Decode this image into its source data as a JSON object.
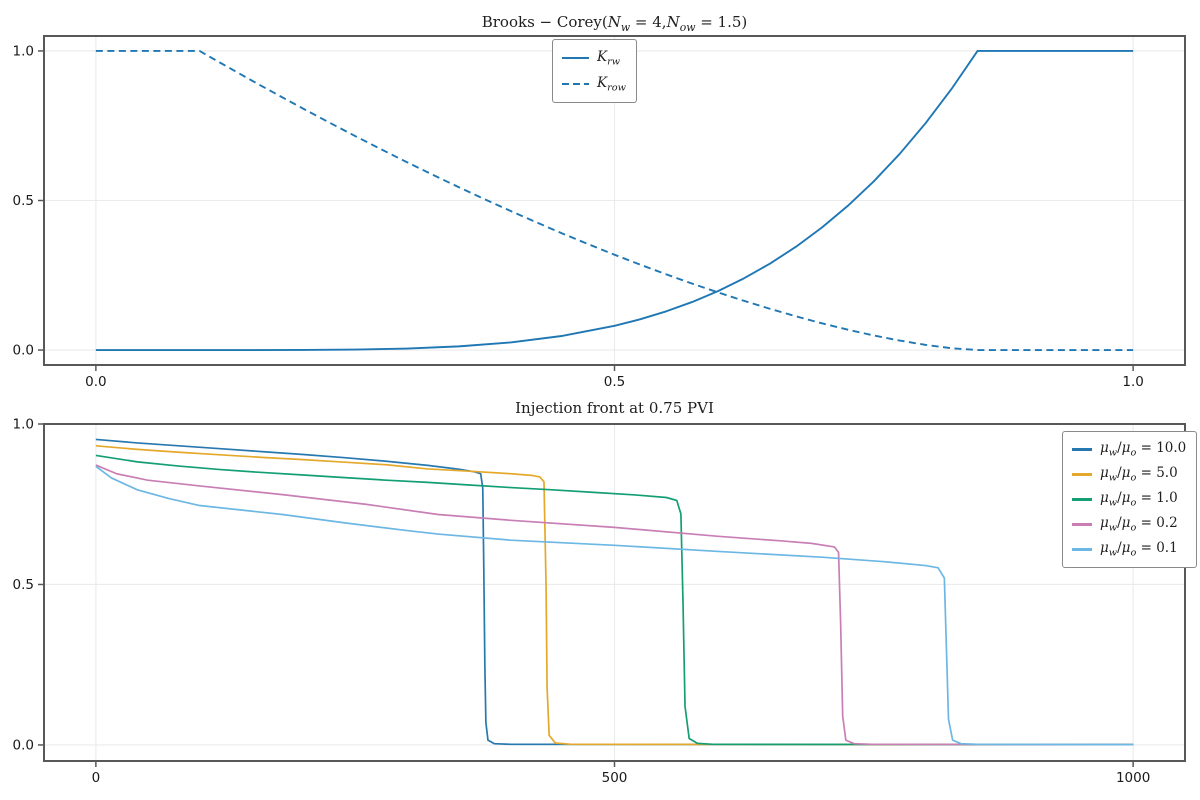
{
  "figure": {
    "background": "#ffffff",
    "spine_color": "#58585b",
    "grid_color": "#ebebeb",
    "tick_label_color": "#1a1a1a",
    "title_color": "#1f1f1f",
    "legend_border_color": "#8a8a8a"
  },
  "chart_data": [
    {
      "type": "line",
      "title": "Brooks − Corey(N_w = 4, N_ow = 1.5)",
      "title_segments": [
        {
          "t": "Brooks − Corey(",
          "s": ""
        },
        {
          "t": "N",
          "s": "i"
        },
        {
          "t": "w",
          "s": "isub"
        },
        {
          "t": " = 4,",
          "s": ""
        },
        {
          "t": "N",
          "s": "i"
        },
        {
          "t": "ow",
          "s": "isub"
        },
        {
          "t": " = 1.5)",
          "s": ""
        }
      ],
      "xlabel": "",
      "ylabel": "",
      "xlim": [
        -0.05,
        1.05
      ],
      "ylim": [
        -0.05,
        1.05
      ],
      "grid": true,
      "legend_position": "upper-center",
      "xticks": [
        {
          "v": 0.0,
          "label": "0.0"
        },
        {
          "v": 0.5,
          "label": "0.5"
        },
        {
          "v": 1.0,
          "label": "1.0"
        }
      ],
      "yticks": [
        {
          "v": 0.0,
          "label": "0.0"
        },
        {
          "v": 0.5,
          "label": "0.5"
        },
        {
          "v": 1.0,
          "label": "1.0"
        }
      ],
      "series": [
        {
          "name": "K_rw",
          "label_plain": "K_rw",
          "label_segments": [
            {
              "t": "K",
              "s": "i"
            },
            {
              "t": "rw",
              "s": "isub"
            }
          ],
          "color": "#1f77b4",
          "dash": "solid",
          "points": [
            [
              0,
              0
            ],
            [
              0.1,
              0
            ],
            [
              0.15,
              0.0
            ],
            [
              0.2,
              0.0003
            ],
            [
              0.25,
              0.0016
            ],
            [
              0.3,
              0.0051
            ],
            [
              0.35,
              0.0123
            ],
            [
              0.4,
              0.0256
            ],
            [
              0.45,
              0.0474
            ],
            [
              0.5,
              0.0809
            ],
            [
              0.525,
              0.1031
            ],
            [
              0.55,
              0.1296
            ],
            [
              0.575,
              0.1608
            ],
            [
              0.6,
              0.1975
            ],
            [
              0.625,
              0.2401
            ],
            [
              0.65,
              0.2892
            ],
            [
              0.675,
              0.3455
            ],
            [
              0.7,
              0.4096
            ],
            [
              0.725,
              0.4823
            ],
            [
              0.75,
              0.5642
            ],
            [
              0.775,
              0.6561
            ],
            [
              0.8,
              0.7589
            ],
            [
              0.825,
              0.8733
            ],
            [
              0.85,
              1.0
            ],
            [
              1.0,
              1.0
            ]
          ]
        },
        {
          "name": "K_row",
          "label_plain": "K_row",
          "label_segments": [
            {
              "t": "K",
              "s": "i"
            },
            {
              "t": "row",
              "s": "isub"
            }
          ],
          "color": "#1f77b4",
          "dash": "dashed",
          "points": [
            [
              0,
              1
            ],
            [
              0.1,
              1
            ],
            [
              0.125,
              0.9505
            ],
            [
              0.15,
              0.9017
            ],
            [
              0.175,
              0.8538
            ],
            [
              0.2,
              0.8068
            ],
            [
              0.225,
              0.7607
            ],
            [
              0.25,
              0.7155
            ],
            [
              0.275,
              0.6713
            ],
            [
              0.3,
              0.6279
            ],
            [
              0.325,
              0.5857
            ],
            [
              0.35,
              0.5443
            ],
            [
              0.375,
              0.504
            ],
            [
              0.4,
              0.4648
            ],
            [
              0.425,
              0.4266
            ],
            [
              0.45,
              0.3894
            ],
            [
              0.475,
              0.3536
            ],
            [
              0.5,
              0.3188
            ],
            [
              0.525,
              0.2852
            ],
            [
              0.55,
              0.253
            ],
            [
              0.575,
              0.222
            ],
            [
              0.6,
              0.1925
            ],
            [
              0.625,
              0.1643
            ],
            [
              0.65,
              0.1377
            ],
            [
              0.675,
              0.1127
            ],
            [
              0.7,
              0.0894
            ],
            [
              0.725,
              0.068
            ],
            [
              0.75,
              0.0487
            ],
            [
              0.775,
              0.0316
            ],
            [
              0.8,
              0.0172
            ],
            [
              0.825,
              0.0061
            ],
            [
              0.85,
              0
            ],
            [
              1.0,
              0
            ]
          ]
        }
      ]
    },
    {
      "type": "line",
      "title": "Injection front at 0.75 PVI",
      "title_segments": [
        {
          "t": "Injection front at 0.75 PVI",
          "s": ""
        }
      ],
      "xlabel": "",
      "ylabel": "",
      "xlim": [
        -50,
        1050
      ],
      "ylim": [
        -0.05,
        1.0
      ],
      "grid": true,
      "legend_position": "upper-right",
      "xticks": [
        {
          "v": 0,
          "label": "0"
        },
        {
          "v": 500,
          "label": "500"
        },
        {
          "v": 1000,
          "label": "1000"
        }
      ],
      "yticks": [
        {
          "v": 0.0,
          "label": "0.0"
        },
        {
          "v": 0.5,
          "label": "0.5"
        },
        {
          "v": 1.0,
          "label": "1.0"
        }
      ],
      "series": [
        {
          "name": "mu_ratio_10.0",
          "label_plain": "mu_w/mu_o = 10.0",
          "label_segments": [
            {
              "t": "μ",
              "s": "i"
            },
            {
              "t": "w",
              "s": "isub"
            },
            {
              "t": "/",
              "s": ""
            },
            {
              "t": "μ",
              "s": "i"
            },
            {
              "t": "o",
              "s": "isub"
            },
            {
              "t": " = 10.0",
              "s": ""
            }
          ],
          "color": "#2878b0",
          "dash": "solid",
          "points": [
            [
              0,
              0.952
            ],
            [
              40,
              0.941
            ],
            [
              80,
              0.932
            ],
            [
              120,
              0.923
            ],
            [
              160,
              0.914
            ],
            [
              200,
              0.905
            ],
            [
              240,
              0.895
            ],
            [
              280,
              0.884
            ],
            [
              320,
              0.871
            ],
            [
              350,
              0.859
            ],
            [
              365,
              0.851
            ],
            [
              371,
              0.845
            ],
            [
              373,
              0.8
            ],
            [
              374,
              0.55
            ],
            [
              375,
              0.25
            ],
            [
              376,
              0.07
            ],
            [
              378,
              0.015
            ],
            [
              384,
              0.004
            ],
            [
              400,
              0.002
            ],
            [
              1000,
              0.001
            ]
          ]
        },
        {
          "name": "mu_ratio_5.0",
          "label_plain": "mu_w/mu_o = 5.0",
          "label_segments": [
            {
              "t": "μ",
              "s": "i"
            },
            {
              "t": "w",
              "s": "isub"
            },
            {
              "t": "/",
              "s": ""
            },
            {
              "t": "μ",
              "s": "i"
            },
            {
              "t": "o",
              "s": "isub"
            },
            {
              "t": " = 5.0",
              "s": ""
            }
          ],
          "color": "#e4a92c",
          "dash": "solid",
          "points": [
            [
              0,
              0.932
            ],
            [
              40,
              0.921
            ],
            [
              80,
              0.912
            ],
            [
              120,
              0.904
            ],
            [
              160,
              0.896
            ],
            [
              200,
              0.889
            ],
            [
              240,
              0.881
            ],
            [
              280,
              0.873
            ],
            [
              320,
              0.86
            ],
            [
              360,
              0.853
            ],
            [
              400,
              0.845
            ],
            [
              420,
              0.84
            ],
            [
              428,
              0.835
            ],
            [
              432,
              0.82
            ],
            [
              434,
              0.5
            ],
            [
              435,
              0.18
            ],
            [
              437,
              0.03
            ],
            [
              443,
              0.006
            ],
            [
              458,
              0.002
            ],
            [
              1000,
              0.001
            ]
          ]
        },
        {
          "name": "mu_ratio_1.0",
          "label_plain": "mu_w/mu_o = 1.0",
          "label_segments": [
            {
              "t": "μ",
              "s": "i"
            },
            {
              "t": "w",
              "s": "isub"
            },
            {
              "t": "/",
              "s": ""
            },
            {
              "t": "μ",
              "s": "i"
            },
            {
              "t": "o",
              "s": "isub"
            },
            {
              "t": " = 1.0",
              "s": ""
            }
          ],
          "color": "#149e74",
          "dash": "solid",
          "points": [
            [
              0,
              0.902
            ],
            [
              40,
              0.882
            ],
            [
              80,
              0.869
            ],
            [
              120,
              0.858
            ],
            [
              160,
              0.849
            ],
            [
              200,
              0.841
            ],
            [
              240,
              0.833
            ],
            [
              280,
              0.825
            ],
            [
              320,
              0.818
            ],
            [
              360,
              0.81
            ],
            [
              400,
              0.802
            ],
            [
              440,
              0.795
            ],
            [
              480,
              0.787
            ],
            [
              520,
              0.779
            ],
            [
              550,
              0.771
            ],
            [
              560,
              0.762
            ],
            [
              564,
              0.72
            ],
            [
              566,
              0.45
            ],
            [
              568,
              0.12
            ],
            [
              572,
              0.02
            ],
            [
              580,
              0.005
            ],
            [
              595,
              0.002
            ],
            [
              1000,
              0.001
            ]
          ]
        },
        {
          "name": "mu_ratio_0.2",
          "label_plain": "mu_w/mu_o = 0.2",
          "label_segments": [
            {
              "t": "μ",
              "s": "i"
            },
            {
              "t": "w",
              "s": "isub"
            },
            {
              "t": "/",
              "s": ""
            },
            {
              "t": "μ",
              "s": "i"
            },
            {
              "t": "o",
              "s": "isub"
            },
            {
              "t": " = 0.2",
              "s": ""
            }
          ],
          "color": "#c97fb5",
          "dash": "solid",
          "points": [
            [
              0,
              0.872
            ],
            [
              20,
              0.845
            ],
            [
              50,
              0.825
            ],
            [
              100,
              0.807
            ],
            [
              180,
              0.78
            ],
            [
              260,
              0.75
            ],
            [
              330,
              0.718
            ],
            [
              400,
              0.7
            ],
            [
              500,
              0.678
            ],
            [
              600,
              0.65
            ],
            [
              660,
              0.636
            ],
            [
              690,
              0.628
            ],
            [
              712,
              0.617
            ],
            [
              716,
              0.6
            ],
            [
              718,
              0.38
            ],
            [
              720,
              0.09
            ],
            [
              723,
              0.015
            ],
            [
              731,
              0.004
            ],
            [
              748,
              0.002
            ],
            [
              1000,
              0.001
            ]
          ]
        },
        {
          "name": "mu_ratio_0.1",
          "label_plain": "mu_w/mu_o = 0.1",
          "label_segments": [
            {
              "t": "μ",
              "s": "i"
            },
            {
              "t": "w",
              "s": "isub"
            },
            {
              "t": "/",
              "s": ""
            },
            {
              "t": "μ",
              "s": "i"
            },
            {
              "t": "o",
              "s": "isub"
            },
            {
              "t": " = 0.1",
              "s": ""
            }
          ],
          "color": "#6cb7e3",
          "dash": "solid",
          "points": [
            [
              0,
              0.868
            ],
            [
              15,
              0.832
            ],
            [
              40,
              0.795
            ],
            [
              70,
              0.768
            ],
            [
              100,
              0.746
            ],
            [
              140,
              0.732
            ],
            [
              180,
              0.718
            ],
            [
              240,
              0.692
            ],
            [
              300,
              0.668
            ],
            [
              330,
              0.657
            ],
            [
              400,
              0.638
            ],
            [
              500,
              0.622
            ],
            [
              600,
              0.603
            ],
            [
              700,
              0.585
            ],
            [
              760,
              0.571
            ],
            [
              800,
              0.559
            ],
            [
              812,
              0.552
            ],
            [
              818,
              0.52
            ],
            [
              820,
              0.3
            ],
            [
              822,
              0.08
            ],
            [
              826,
              0.015
            ],
            [
              834,
              0.004
            ],
            [
              850,
              0.002
            ],
            [
              1000,
              0.001
            ]
          ]
        }
      ]
    }
  ]
}
